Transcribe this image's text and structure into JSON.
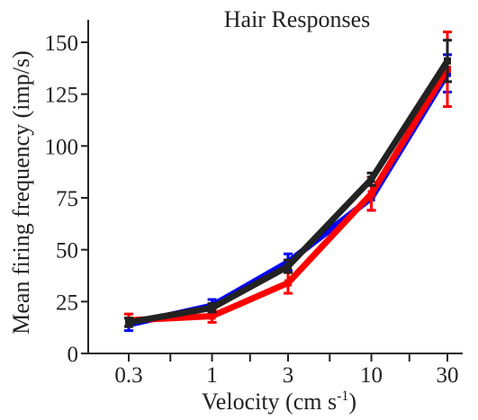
{
  "chart_data": {
    "type": "line",
    "title": "Hair Responses",
    "xlabel": "Velocity (cm s",
    "xlabel_sup": "-1",
    "xlabel_close": ")",
    "ylabel": "Mean firing frequency (imp/s)",
    "x_scale": "log",
    "categories": [
      "0.3",
      "1",
      "3",
      "10",
      "30"
    ],
    "x": [
      0.3,
      1,
      3,
      10,
      30
    ],
    "ylim": [
      0,
      160
    ],
    "yticks": [
      0,
      25,
      50,
      75,
      100,
      125,
      150
    ],
    "ytick_labels": [
      "0",
      "25",
      "50",
      "75",
      "100",
      "125",
      "150"
    ],
    "grid": false,
    "legend": "none",
    "series": [
      {
        "color": "#0000ff",
        "values": [
          14,
          23,
          44,
          75,
          135
        ],
        "errors": [
          3,
          3,
          4,
          6,
          9
        ]
      },
      {
        "color": "#ff0000",
        "values": [
          16,
          18,
          34,
          77,
          137
        ],
        "errors": [
          3,
          3,
          5,
          8,
          18
        ]
      },
      {
        "color": "#222222",
        "values": [
          15,
          22,
          42,
          84,
          141
        ],
        "errors": [
          2,
          2,
          3,
          3,
          10
        ]
      }
    ]
  }
}
